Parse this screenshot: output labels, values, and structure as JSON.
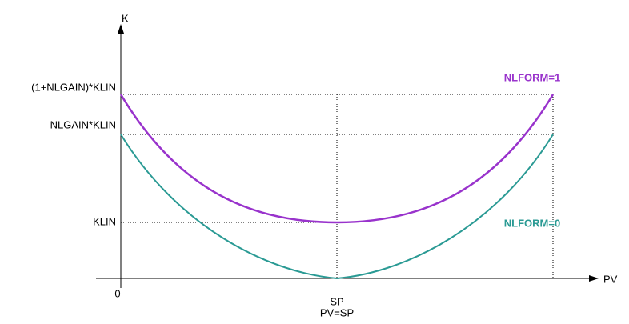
{
  "axes": {
    "y_label": "K",
    "x_label": "PV",
    "origin": "0"
  },
  "y_labels": [
    "(1+NLGAIN)*KLIN",
    "NLGAIN*KLIN",
    "KLIN"
  ],
  "x_labels": [
    "SP",
    "PV=SP"
  ],
  "curves": [
    {
      "label": "NLFORM=1",
      "color": "#9933cc"
    },
    {
      "label": "NLFORM=0",
      "color": "#2a9a94"
    }
  ]
}
